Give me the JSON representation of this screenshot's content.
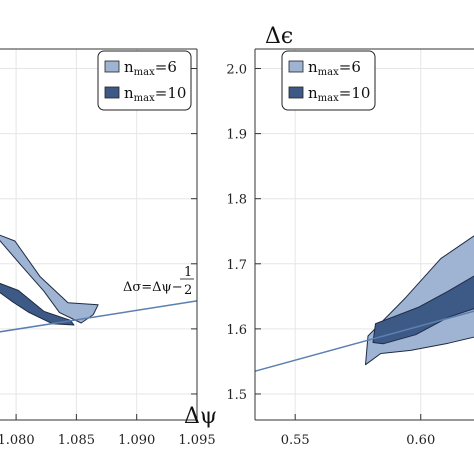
{
  "chart_data": [
    {
      "type": "area",
      "xlabel": "Δψ",
      "ylabel": "",
      "x_ticks": [
        "1.080",
        "1.085",
        "1.090",
        "1.095"
      ],
      "xlim": [
        1.0785,
        1.095
      ],
      "ylim": [
        1.46,
        2.03
      ],
      "grid": true,
      "legend_position": "top-right",
      "series": [
        {
          "name": "n_max=6",
          "color": "#9fb3d3",
          "region": [
            [
              1.0785,
              1.739
            ],
            [
              1.0804,
              1.698
            ],
            [
              1.0823,
              1.658
            ],
            [
              1.0836,
              1.625
            ],
            [
              1.0854,
              1.609
            ],
            [
              1.0864,
              1.622
            ],
            [
              1.0868,
              1.637
            ],
            [
              1.0843,
              1.64
            ],
            [
              1.082,
              1.68
            ],
            [
              1.0799,
              1.735
            ],
            [
              1.0785,
              1.745
            ]
          ]
        },
        {
          "name": "n_max=10",
          "color": "#3d5a86",
          "region": [
            [
              1.0785,
              1.671
            ],
            [
              1.0802,
              1.659
            ],
            [
              1.0823,
              1.627
            ],
            [
              1.0845,
              1.613
            ],
            [
              1.0848,
              1.606
            ],
            [
              1.083,
              1.608
            ],
            [
              1.081,
              1.626
            ],
            [
              1.0796,
              1.643
            ],
            [
              1.0785,
              1.658
            ]
          ]
        }
      ],
      "annotation": {
        "label_left": "Δσ=Δψ−",
        "frac_num": "1",
        "frac_den": "2"
      },
      "line": {
        "x": [
          1.0785,
          1.095
        ],
        "y": [
          1.595,
          1.643
        ]
      }
    },
    {
      "type": "area",
      "xlabel": "",
      "ylabel": "Δϵ",
      "x_ticks": [
        "0.55",
        "0.60"
      ],
      "y_ticks": [
        "1.5",
        "1.6",
        "1.7",
        "1.8",
        "1.9",
        "2.0"
      ],
      "xlim": [
        0.534,
        0.622
      ],
      "ylim": [
        1.46,
        2.03
      ],
      "grid": true,
      "legend_position": "top-right",
      "series": [
        {
          "name": "n_max=6",
          "color": "#9fb3d3",
          "region": [
            [
              0.578,
              1.545
            ],
            [
              0.579,
              1.589
            ],
            [
              0.594,
              1.648
            ],
            [
              0.608,
              1.708
            ],
            [
              0.622,
              1.745
            ],
            [
              0.622,
              1.588
            ],
            [
              0.611,
              1.578
            ],
            [
              0.596,
              1.567
            ],
            [
              0.584,
              1.562
            ]
          ]
        },
        {
          "name": "n_max=10",
          "color": "#3d5a86",
          "region": [
            [
              0.581,
              1.579
            ],
            [
              0.582,
              1.608
            ],
            [
              0.599,
              1.633
            ],
            [
              0.611,
              1.658
            ],
            [
              0.622,
              1.683
            ],
            [
              0.622,
              1.632
            ],
            [
              0.611,
              1.618
            ],
            [
              0.598,
              1.591
            ],
            [
              0.585,
              1.577
            ]
          ]
        }
      ],
      "line": {
        "x": [
          0.534,
          0.622
        ],
        "y": [
          1.535,
          1.628
        ]
      }
    }
  ],
  "legend": {
    "items": [
      {
        "base": "n",
        "sub": "max",
        "value": "=6",
        "color": "#9fb3d3"
      },
      {
        "base": "n",
        "sub": "max",
        "value": "=10",
        "color": "#3d5a86"
      }
    ]
  },
  "line_color": "#5a7fb0"
}
